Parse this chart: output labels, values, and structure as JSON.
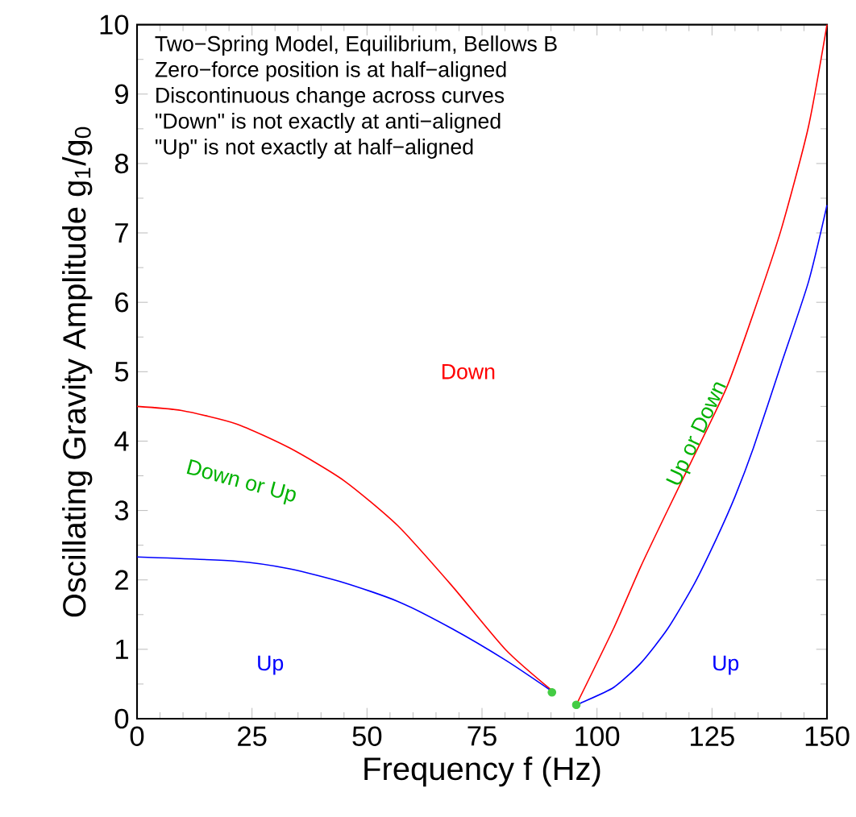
{
  "chart_data": {
    "type": "line",
    "xlabel": "Frequency f (Hz)",
    "ylabel": "Oscillating Gravity Amplitude g$_{1}$/g$_{0}$",
    "xlim": [
      0,
      150
    ],
    "ylim": [
      0,
      10
    ],
    "xticks": [
      0,
      25,
      50,
      75,
      100,
      125,
      150
    ],
    "yticks": [
      0,
      1,
      2,
      3,
      4,
      5,
      6,
      7,
      8,
      9,
      10
    ],
    "series": [
      {
        "color": "#ff0000",
        "x": [
          0,
          9.7,
          21.5,
          33.2,
          45,
          56.7,
          68.4,
          80.2,
          90.5,
          92,
          95.5,
          103.6,
          109.5,
          115.4,
          121.2,
          128.3,
          134.2,
          140,
          145.9,
          150
        ],
        "values": [
          4.5,
          4.44,
          4.25,
          3.9,
          3.43,
          2.78,
          1.92,
          0.99,
          0.39,
          null,
          0.2,
          1.3,
          2.19,
          3.01,
          3.8,
          4.79,
          5.88,
          7.04,
          8.51,
          10
        ]
      },
      {
        "color": "#0000ff",
        "x": [
          0,
          21.5,
          33.2,
          45,
          56.7,
          68.4,
          80.2,
          90.1,
          92,
          95.5,
          96.6,
          103.6,
          109.5,
          115.4,
          121.2,
          126,
          130,
          134,
          140,
          146,
          150
        ],
        "values": [
          2.33,
          2.27,
          2.16,
          1.96,
          1.69,
          1.3,
          0.84,
          0.4,
          null,
          0.2,
          0.23,
          0.45,
          0.8,
          1.3,
          1.95,
          2.6,
          3.2,
          3.9,
          5.1,
          6.3,
          7.4
        ]
      },
      {
        "type": "scatter",
        "marker": "circle",
        "color": "#44cc44",
        "x": [
          90.2,
          95.5
        ],
        "values": [
          0.38,
          0.2
        ]
      }
    ],
    "annotations": [
      "Two−Spring Model, Equilibrium, Bellows B",
      "Zero−force position is at half−aligned",
      "Discontinuous change across curves",
      "\"Down\" is not exactly at anti−aligned",
      "\"Up\" is not exactly at half−aligned",
      "Down",
      "Down or Up",
      "Up",
      "Up or Down",
      "Up"
    ]
  }
}
